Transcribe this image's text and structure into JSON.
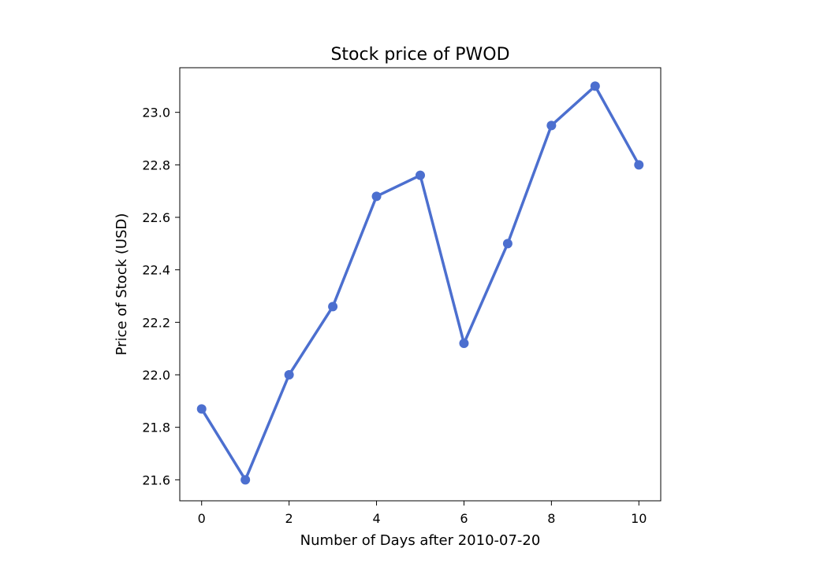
{
  "chart_data": {
    "type": "line",
    "title": "Stock price of PWOD",
    "xlabel": "Number of Days after 2010-07-20",
    "ylabel": "Price of Stock (USD)",
    "x": [
      0,
      1,
      2,
      3,
      4,
      5,
      6,
      7,
      8,
      9,
      10
    ],
    "series": [
      {
        "values": [
          21.87,
          21.6,
          22.0,
          22.26,
          22.68,
          22.76,
          22.12,
          22.5,
          22.95,
          23.1,
          22.8
        ]
      }
    ],
    "xlim": [
      -0.5,
      10.5
    ],
    "ylim": [
      21.52,
      23.17
    ],
    "xticks": [
      0,
      2,
      4,
      6,
      8,
      10
    ],
    "xtick_labels": [
      "0",
      "2",
      "4",
      "6",
      "8",
      "10"
    ],
    "yticks": [
      21.6,
      21.8,
      22.0,
      22.2,
      22.4,
      22.6,
      22.8,
      23.0
    ],
    "ytick_labels": [
      "21.6",
      "21.8",
      "22.0",
      "22.2",
      "22.4",
      "22.6",
      "22.8",
      "23.0"
    ],
    "grid": false,
    "line_color": "#4c6fcf",
    "marker": "circle"
  }
}
